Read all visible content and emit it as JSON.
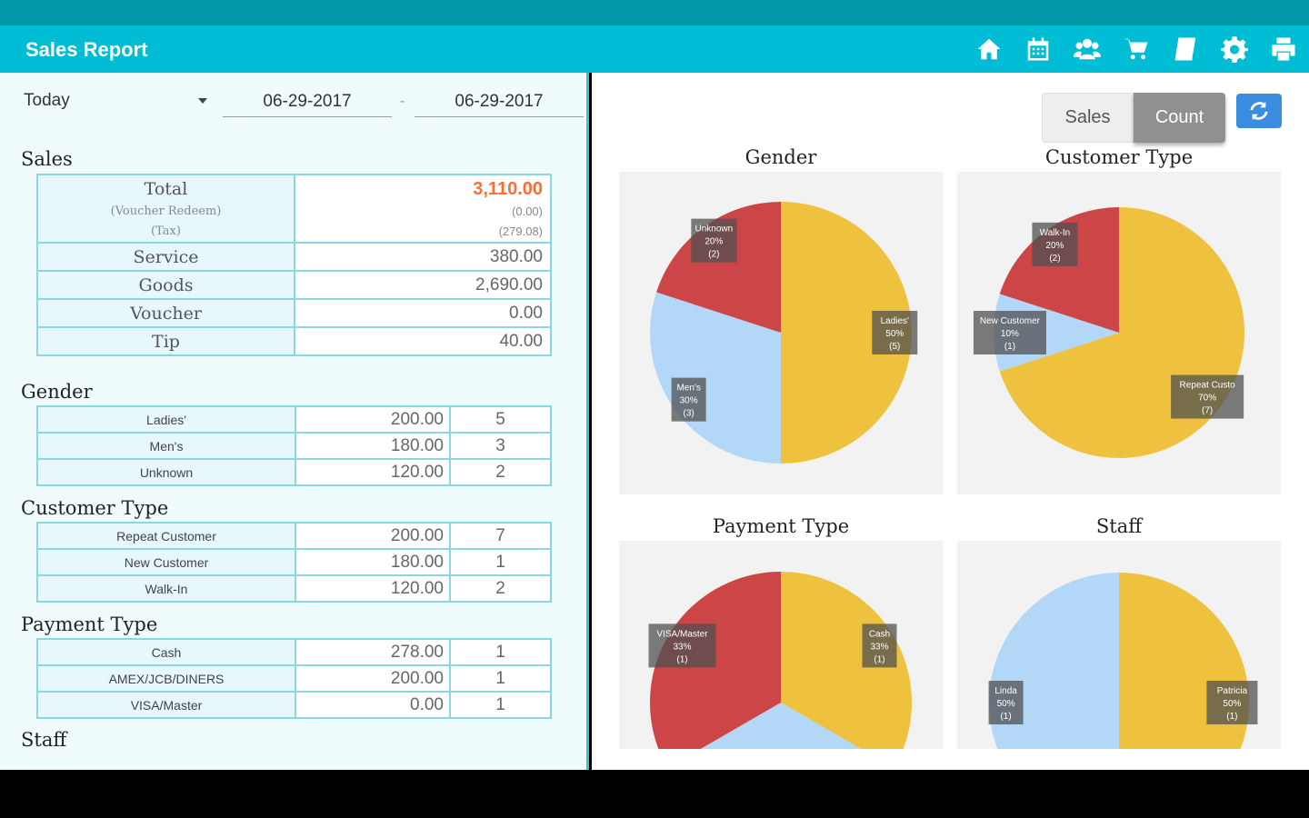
{
  "app": {
    "title": "Sales Report"
  },
  "toolbar_icons": [
    "home-icon",
    "calendar-icon",
    "users-icon",
    "cart-icon",
    "book-icon",
    "gear-icon",
    "print-icon"
  ],
  "filter": {
    "period": "Today",
    "date_from": "06-29-2017",
    "separator": "-",
    "date_to": "06-29-2017"
  },
  "sales": {
    "title": "Sales",
    "total_label": "Total",
    "voucher_redeem_label": "(Voucher Redeem)",
    "tax_label": "(Tax)",
    "total_value": "3,110.00",
    "voucher_redeem_value": "(0.00)",
    "tax_value": "(279.08)",
    "rows": [
      {
        "label": "Service",
        "value": "380.00"
      },
      {
        "label": "Goods",
        "value": "2,690.00"
      },
      {
        "label": "Voucher",
        "value": "0.00"
      },
      {
        "label": "Tip",
        "value": "40.00"
      }
    ]
  },
  "gender": {
    "title": "Gender",
    "rows": [
      {
        "label": "Ladies'",
        "amount": "200.00",
        "count": "5"
      },
      {
        "label": "Men's",
        "amount": "180.00",
        "count": "3"
      },
      {
        "label": "Unknown",
        "amount": "120.00",
        "count": "2"
      }
    ]
  },
  "customer_type": {
    "title": "Customer Type",
    "rows": [
      {
        "label": "Repeat Customer",
        "amount": "200.00",
        "count": "7"
      },
      {
        "label": "New Customer",
        "amount": "180.00",
        "count": "1"
      },
      {
        "label": "Walk-In",
        "amount": "120.00",
        "count": "2"
      }
    ]
  },
  "payment_type": {
    "title": "Payment Type",
    "rows": [
      {
        "label": "Cash",
        "amount": "278.00",
        "count": "1"
      },
      {
        "label": "AMEX/JCB/DINERS",
        "amount": "200.00",
        "count": "1"
      },
      {
        "label": "VISA/Master",
        "amount": "0.00",
        "count": "1"
      }
    ]
  },
  "staff": {
    "title": "Staff"
  },
  "mode_toggle": {
    "sales_label": "Sales",
    "count_label": "Count",
    "selected": "Count"
  },
  "colors": {
    "yellow": "#eec23e",
    "red": "#cc4647",
    "blue": "#b3d8f7",
    "accent": "#00bcd4",
    "total": "#ff6d2e"
  },
  "chart_data": [
    {
      "type": "pie",
      "title": "Gender",
      "slices": [
        {
          "label": "Ladies'",
          "percent": "50%",
          "count": "(5)",
          "value": 5
        },
        {
          "label": "Men's",
          "percent": "30%",
          "count": "(3)",
          "value": 3
        },
        {
          "label": "Unknown",
          "percent": "20%",
          "count": "(2)",
          "value": 2
        }
      ]
    },
    {
      "type": "pie",
      "title": "Customer Type",
      "slices": [
        {
          "label": "Repeat Custo",
          "percent": "70%",
          "count": "(7)",
          "value": 7
        },
        {
          "label": "New Customer",
          "percent": "10%",
          "count": "(1)",
          "value": 1
        },
        {
          "label": "Walk-In",
          "percent": "20%",
          "count": "(2)",
          "value": 2
        }
      ]
    },
    {
      "type": "pie",
      "title": "Payment Type",
      "slices": [
        {
          "label": "Cash",
          "percent": "33%",
          "count": "(1)",
          "value": 1
        },
        {
          "label": "",
          "percent": "",
          "count": "",
          "value": 1
        },
        {
          "label": "VISA/Master",
          "percent": "33%",
          "count": "(1)",
          "value": 1
        }
      ]
    },
    {
      "type": "pie",
      "title": "Staff",
      "slices": [
        {
          "label": "Patricia",
          "percent": "50%",
          "count": "(1)",
          "value": 1
        },
        {
          "label": "Linda",
          "percent": "50%",
          "count": "(1)",
          "value": 1
        }
      ]
    }
  ]
}
